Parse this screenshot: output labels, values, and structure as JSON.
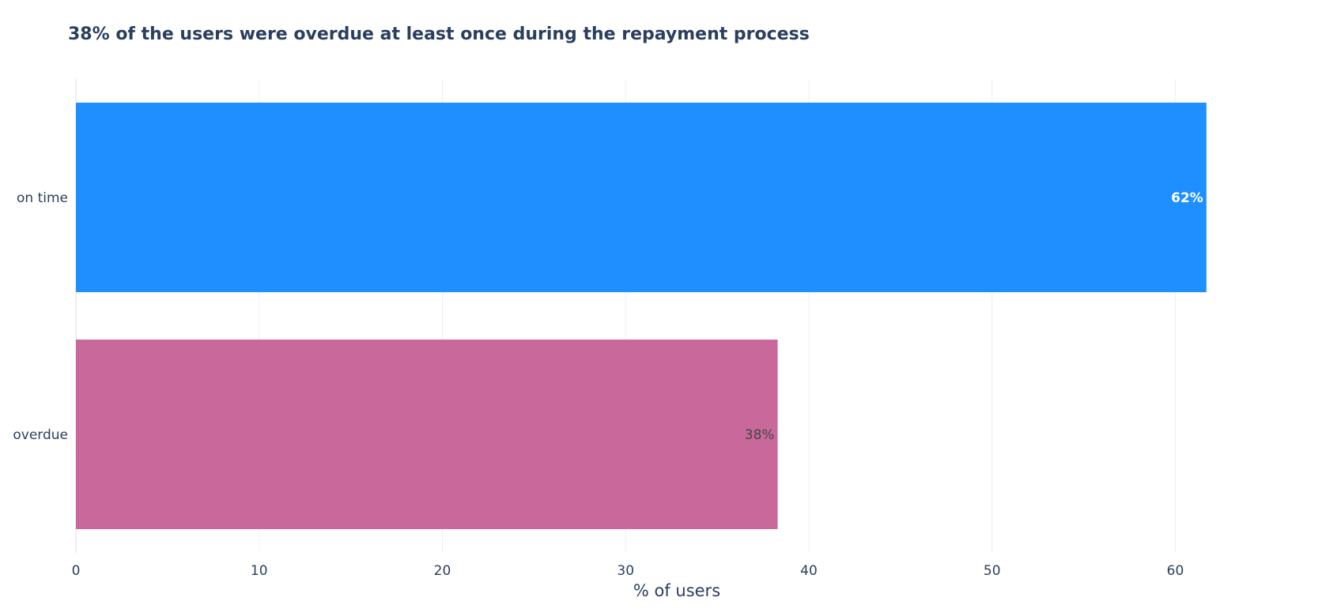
{
  "chart_data": {
    "type": "bar",
    "orientation": "horizontal",
    "title": "38% of the users were overdue at least once during the repayment process",
    "xlabel": "% of users",
    "ylabel": "",
    "categories": [
      "on time",
      "overdue"
    ],
    "values": [
      61.7,
      38.3
    ],
    "data_labels": [
      "62%",
      "38%"
    ],
    "colors": [
      "#1f8fff",
      "#c9689b"
    ],
    "label_colors": [
      "#ffffff",
      "#444444"
    ],
    "xticks": [
      0,
      10,
      20,
      30,
      40,
      50,
      60
    ],
    "xtick_labels": [
      "0",
      "10",
      "20",
      "30",
      "40",
      "50",
      "60"
    ],
    "xlim": [
      0,
      64.9
    ],
    "grid": true,
    "legend": "none"
  }
}
